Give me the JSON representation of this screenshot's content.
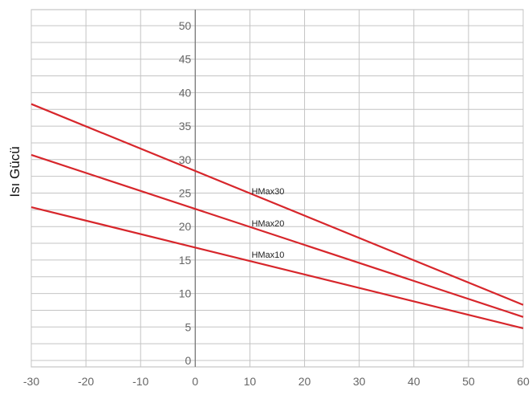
{
  "chart_data": {
    "type": "line",
    "title": "",
    "xlabel": "",
    "ylabel": "Isı Gücü",
    "xlim": [
      -30,
      60
    ],
    "ylim": [
      0,
      50
    ],
    "x_ticks": [
      -30,
      -20,
      -10,
      0,
      10,
      20,
      30,
      40,
      50,
      60
    ],
    "y_ticks": [
      0,
      5,
      10,
      15,
      20,
      25,
      30,
      35,
      40,
      45,
      50
    ],
    "grid": true,
    "legend": "none",
    "series": [
      {
        "name": "HMax30",
        "color": "#d7262b",
        "x": [
          -30,
          60
        ],
        "y": [
          38.3,
          8.3
        ],
        "label_at": [
          10,
          25.3
        ]
      },
      {
        "name": "HMax20",
        "color": "#d7262b",
        "x": [
          -30,
          60
        ],
        "y": [
          30.7,
          6.5
        ],
        "label_at": [
          10,
          20.5
        ]
      },
      {
        "name": "HMax10",
        "color": "#d7262b",
        "x": [
          -30,
          60
        ],
        "y": [
          22.9,
          4.8
        ],
        "label_at": [
          10,
          15.8
        ]
      }
    ]
  }
}
